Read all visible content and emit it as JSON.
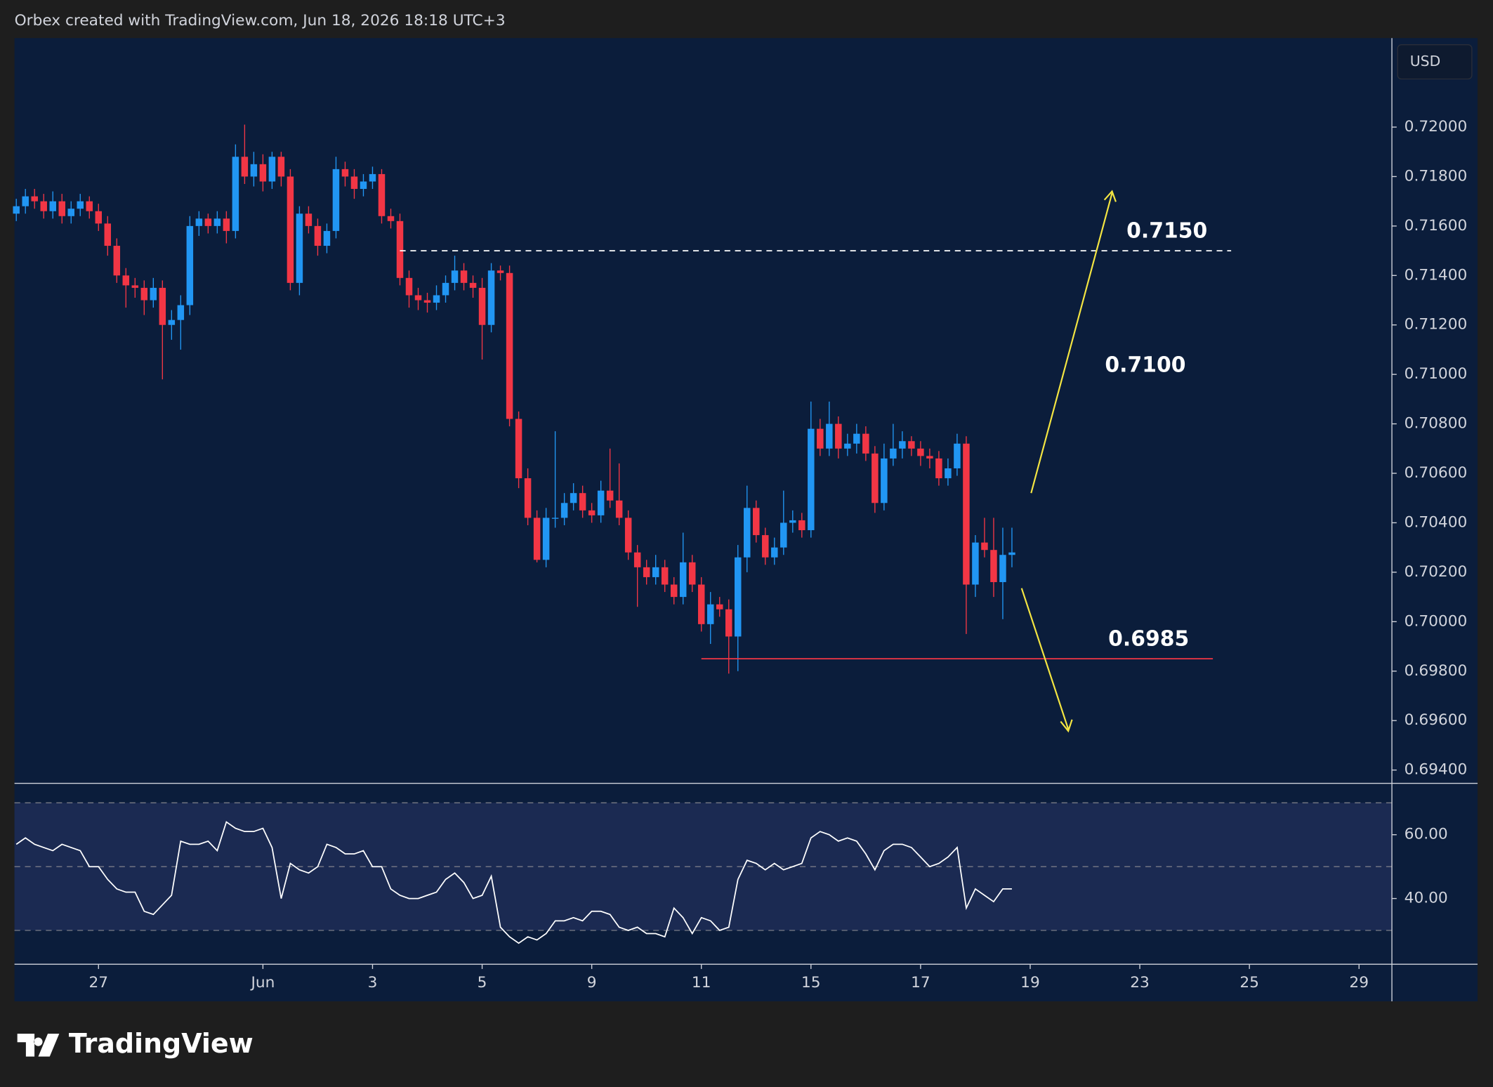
{
  "header": {
    "text": "Orbex created with TradingView.com, Jun 18, 2026 18:18 UTC+3"
  },
  "footer": {
    "brand": "TradingView"
  },
  "chart_data": [
    {
      "type": "candlestick",
      "y_axis_label": "USD",
      "up_color": "#2196f3",
      "down_color": "#f23645",
      "open": [
        0.7165,
        0.7168,
        0.7172,
        0.717,
        0.7166,
        0.717,
        0.7164,
        0.7167,
        0.717,
        0.7166,
        0.7161,
        0.7152,
        0.714,
        0.7136,
        0.7135,
        0.713,
        0.7135,
        0.712,
        0.7122,
        0.7128,
        0.716,
        0.7163,
        0.716,
        0.7163,
        0.7158,
        0.7188,
        0.718,
        0.7185,
        0.7178,
        0.7188,
        0.718,
        0.7137,
        0.7165,
        0.716,
        0.7152,
        0.7158,
        0.7183,
        0.718,
        0.7175,
        0.7178,
        0.7181,
        0.7164,
        0.7162,
        0.7139,
        0.7132,
        0.713,
        0.7129,
        0.7132,
        0.7137,
        0.7142,
        0.7137,
        0.7135,
        0.712,
        0.7142,
        0.7141,
        0.7082,
        0.7058,
        0.7042,
        0.7025,
        0.7042,
        0.7042,
        0.7048,
        0.7052,
        0.7045,
        0.7043,
        0.7053,
        0.7049,
        0.7042,
        0.7028,
        0.7022,
        0.7018,
        0.7022,
        0.7015,
        0.701,
        0.7024,
        0.7015,
        0.6999,
        0.7007,
        0.7005,
        0.6994,
        0.7026,
        0.7046,
        0.7035,
        0.7026,
        0.703,
        0.704,
        0.7041,
        0.7037,
        0.7078,
        0.707,
        0.708,
        0.707,
        0.7072,
        0.7076,
        0.7068,
        0.7048,
        0.7066,
        0.707,
        0.7073,
        0.707,
        0.7067,
        0.7066,
        0.7058,
        0.7062,
        0.7072,
        0.7015,
        0.7032,
        0.7029,
        0.7016,
        0.7027
      ],
      "high": [
        0.7171,
        0.7175,
        0.7175,
        0.7173,
        0.7174,
        0.7173,
        0.717,
        0.7173,
        0.7172,
        0.7169,
        0.7164,
        0.7155,
        0.7143,
        0.7139,
        0.7138,
        0.7139,
        0.7138,
        0.7126,
        0.7132,
        0.7164,
        0.7166,
        0.7165,
        0.7166,
        0.7166,
        0.7193,
        0.7201,
        0.719,
        0.7189,
        0.719,
        0.719,
        0.7183,
        0.7168,
        0.7168,
        0.7163,
        0.7161,
        0.7188,
        0.7186,
        0.7183,
        0.7181,
        0.7184,
        0.7183,
        0.7167,
        0.7165,
        0.7142,
        0.7135,
        0.7133,
        0.7136,
        0.714,
        0.7148,
        0.7145,
        0.714,
        0.7139,
        0.7145,
        0.7144,
        0.7144,
        0.7085,
        0.7062,
        0.7045,
        0.7046,
        0.7077,
        0.7052,
        0.7056,
        0.7055,
        0.7048,
        0.7057,
        0.707,
        0.7064,
        0.7045,
        0.7031,
        0.7025,
        0.7027,
        0.7025,
        0.7018,
        0.7036,
        0.7027,
        0.7018,
        0.7012,
        0.701,
        0.7009,
        0.7031,
        0.7055,
        0.7049,
        0.7038,
        0.7034,
        0.7053,
        0.7045,
        0.7044,
        0.7089,
        0.7082,
        0.7089,
        0.7083,
        0.7076,
        0.708,
        0.7079,
        0.7071,
        0.7072,
        0.708,
        0.7077,
        0.7075,
        0.7073,
        0.707,
        0.7069,
        0.7066,
        0.7076,
        0.7075,
        0.7035,
        0.7042,
        0.7042,
        0.7038,
        0.7038
      ],
      "low": [
        0.7162,
        0.7165,
        0.7167,
        0.7163,
        0.7163,
        0.7161,
        0.7161,
        0.7164,
        0.7163,
        0.7158,
        0.7148,
        0.7137,
        0.7127,
        0.7131,
        0.7124,
        0.7127,
        0.7098,
        0.7114,
        0.711,
        0.7124,
        0.7156,
        0.7157,
        0.7157,
        0.7153,
        0.7155,
        0.7177,
        0.7176,
        0.7174,
        0.7175,
        0.7176,
        0.7134,
        0.7132,
        0.7157,
        0.7148,
        0.7149,
        0.7155,
        0.7176,
        0.7171,
        0.7172,
        0.7175,
        0.7161,
        0.7159,
        0.7136,
        0.7127,
        0.7126,
        0.7125,
        0.7126,
        0.7129,
        0.7134,
        0.7134,
        0.7131,
        0.7106,
        0.7117,
        0.7138,
        0.7079,
        0.7054,
        0.7039,
        0.7024,
        0.7022,
        0.7038,
        0.7039,
        0.7045,
        0.7042,
        0.704,
        0.704,
        0.7046,
        0.7039,
        0.7025,
        0.7006,
        0.7015,
        0.7015,
        0.7012,
        0.7007,
        0.7007,
        0.7012,
        0.6996,
        0.6991,
        0.7002,
        0.6979,
        0.698,
        0.702,
        0.7032,
        0.7023,
        0.7023,
        0.7027,
        0.7036,
        0.7034,
        0.7034,
        0.7067,
        0.7067,
        0.7066,
        0.7067,
        0.7068,
        0.7065,
        0.7044,
        0.7045,
        0.7063,
        0.7066,
        0.7067,
        0.7063,
        0.7062,
        0.7055,
        0.7055,
        0.7059,
        0.6995,
        0.701,
        0.7026,
        0.701,
        0.7001,
        0.7022
      ],
      "close": [
        0.7168,
        0.7172,
        0.717,
        0.7166,
        0.717,
        0.7164,
        0.7167,
        0.717,
        0.7166,
        0.7161,
        0.7152,
        0.714,
        0.7136,
        0.7135,
        0.713,
        0.7135,
        0.712,
        0.7122,
        0.7128,
        0.716,
        0.7163,
        0.716,
        0.7163,
        0.7158,
        0.7188,
        0.718,
        0.7185,
        0.7178,
        0.7188,
        0.718,
        0.7137,
        0.7165,
        0.716,
        0.7152,
        0.7158,
        0.7183,
        0.718,
        0.7175,
        0.7178,
        0.7181,
        0.7164,
        0.7162,
        0.7139,
        0.7132,
        0.713,
        0.7129,
        0.7132,
        0.7137,
        0.7142,
        0.7137,
        0.7135,
        0.712,
        0.7142,
        0.7141,
        0.7082,
        0.7058,
        0.7042,
        0.7025,
        0.7042,
        0.7042,
        0.7048,
        0.7052,
        0.7045,
        0.7043,
        0.7053,
        0.7049,
        0.7042,
        0.7028,
        0.7022,
        0.7018,
        0.7022,
        0.7015,
        0.701,
        0.7024,
        0.7015,
        0.6999,
        0.7007,
        0.7005,
        0.6994,
        0.7026,
        0.7046,
        0.7035,
        0.7026,
        0.703,
        0.704,
        0.7041,
        0.7037,
        0.7078,
        0.707,
        0.708,
        0.707,
        0.7072,
        0.7076,
        0.7068,
        0.7048,
        0.7066,
        0.707,
        0.7073,
        0.707,
        0.7067,
        0.7066,
        0.7058,
        0.7062,
        0.7072,
        0.7015,
        0.7032,
        0.7029,
        0.7016,
        0.7027,
        0.7028
      ],
      "xlim": [
        -0.2,
        150.6
      ],
      "ylim": [
        0.6935,
        0.7236
      ],
      "yticks": [
        {
          "value": 0.694,
          "label": "0.69400"
        },
        {
          "value": 0.696,
          "label": "0.69600"
        },
        {
          "value": 0.698,
          "label": "0.69800"
        },
        {
          "value": 0.7,
          "label": "0.70000"
        },
        {
          "value": 0.702,
          "label": "0.70200"
        },
        {
          "value": 0.704,
          "label": "0.70400"
        },
        {
          "value": 0.706,
          "label": "0.70600"
        },
        {
          "value": 0.708,
          "label": "0.70800"
        },
        {
          "value": 0.71,
          "label": "0.71000"
        },
        {
          "value": 0.712,
          "label": "0.71200"
        },
        {
          "value": 0.714,
          "label": "0.71400"
        },
        {
          "value": 0.716,
          "label": "0.71600"
        },
        {
          "value": 0.718,
          "label": "0.71800"
        },
        {
          "value": 0.72,
          "label": "0.72000"
        }
      ],
      "levels": [
        {
          "label": "0.7150",
          "value": 0.715,
          "from": 42,
          "to": 133,
          "color": "#ffffff",
          "dashed": true
        },
        {
          "label": "0.6985",
          "value": 0.6985,
          "from": 75,
          "to": 131,
          "color": "#f23645",
          "dashed": false
        }
      ],
      "annotations": [
        {
          "text": "0.7100",
          "value": 0.71
        }
      ]
    },
    {
      "type": "line",
      "color": "#ffffff",
      "values": [
        57,
        59,
        57,
        56,
        55,
        57,
        56,
        55,
        50,
        50,
        46,
        43,
        42,
        42,
        36,
        35,
        38,
        41,
        58,
        57,
        57,
        58,
        55,
        64,
        62,
        61,
        61,
        62,
        56,
        40,
        51,
        49,
        48,
        50,
        57,
        56,
        54,
        54,
        55,
        50,
        50,
        43,
        41,
        40,
        40,
        41,
        42,
        46,
        48,
        45,
        40,
        41,
        47,
        31,
        28,
        26,
        28,
        27,
        29,
        33,
        33,
        34,
        33,
        36,
        36,
        35,
        31,
        30,
        31,
        29,
        29,
        28,
        37,
        34,
        29,
        34,
        33,
        30,
        31,
        46,
        52,
        51,
        49,
        51,
        49,
        50,
        51,
        59,
        61,
        60,
        58,
        59,
        58,
        54,
        49,
        55,
        57,
        57,
        56,
        53,
        50,
        51,
        53,
        56,
        37,
        43,
        41,
        39,
        43,
        43
      ],
      "xlim": [
        -0.2,
        150.6
      ],
      "ylim": [
        19.7,
        75.8
      ],
      "yticks": [
        {
          "value": 60,
          "label": "60.00"
        },
        {
          "value": 40,
          "label": "40.00"
        }
      ],
      "bands": [
        70,
        50,
        30
      ],
      "xticks": [
        {
          "value": 9,
          "label": "27"
        },
        {
          "value": 27,
          "label": "Jun"
        },
        {
          "value": 39,
          "label": "3"
        },
        {
          "value": 51,
          "label": "5"
        },
        {
          "value": 63,
          "label": "9"
        },
        {
          "value": 75,
          "label": "11"
        },
        {
          "value": 87,
          "label": "15"
        },
        {
          "value": 99,
          "label": "17"
        },
        {
          "value": 111,
          "label": "19"
        },
        {
          "value": 123,
          "label": "23"
        },
        {
          "value": 135,
          "label": "25"
        },
        {
          "value": 147,
          "label": "29"
        }
      ]
    }
  ]
}
